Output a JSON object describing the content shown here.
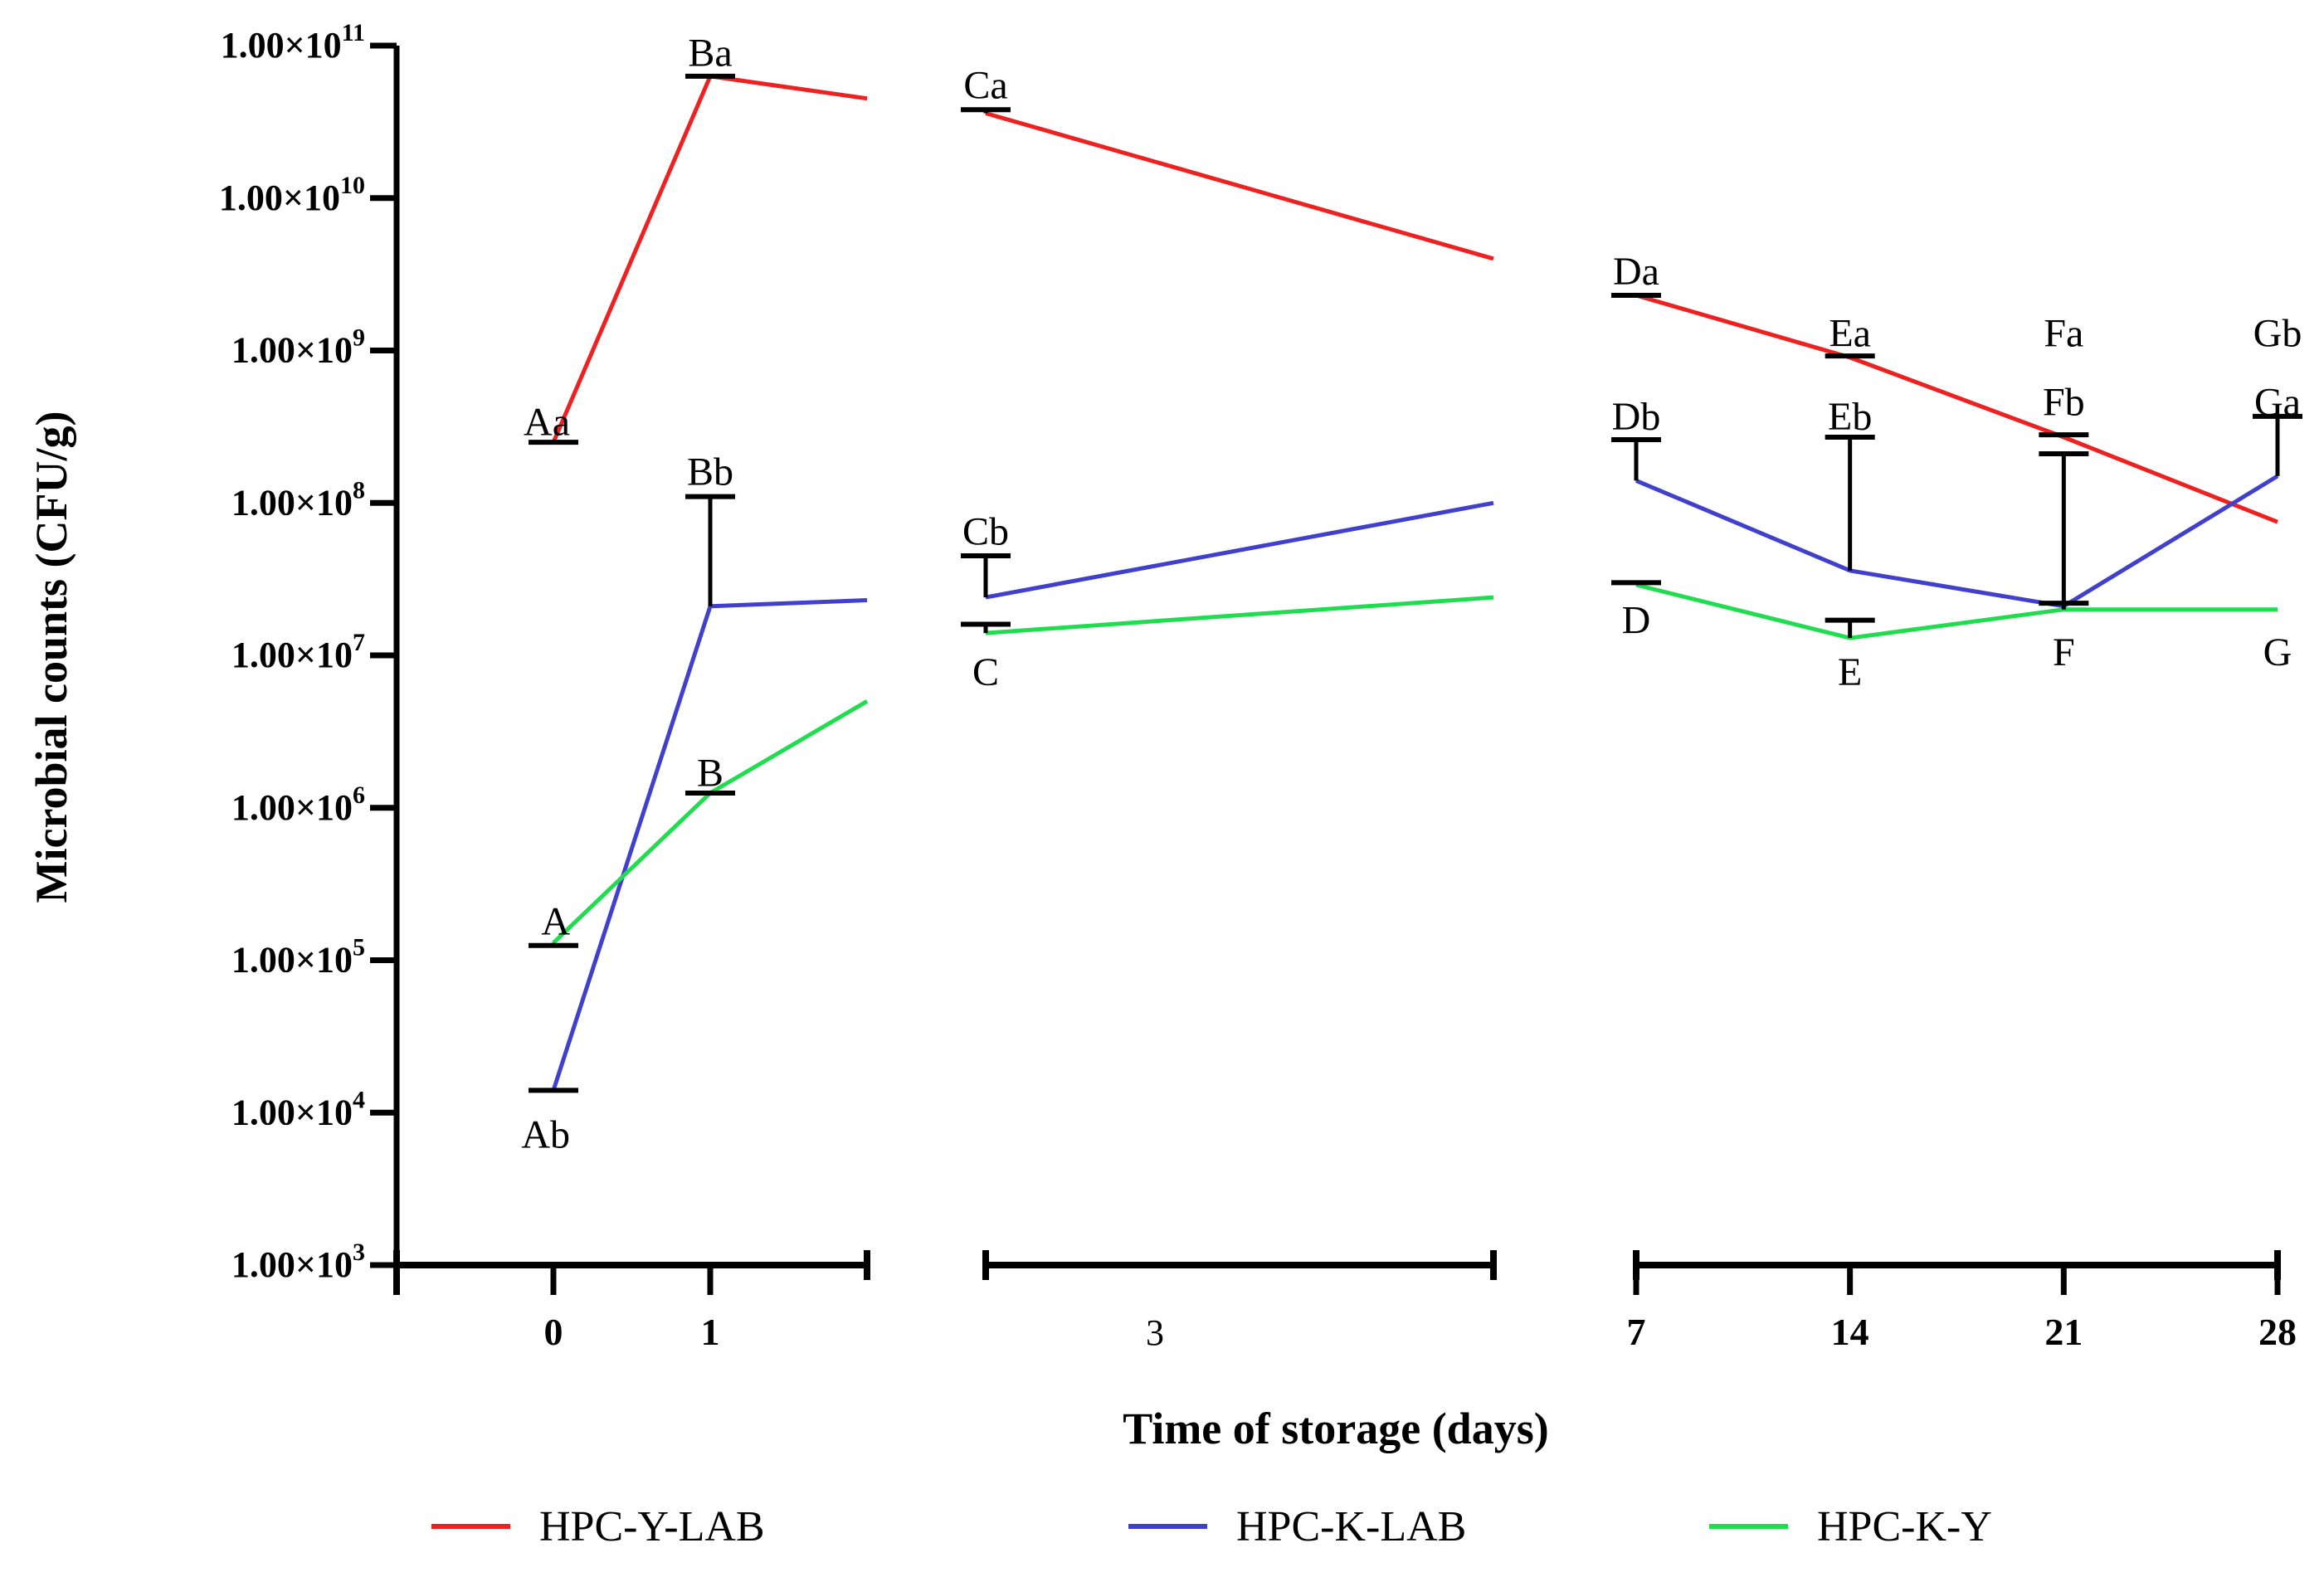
{
  "chart_data": {
    "type": "line",
    "xlabel": "Time of storage (days)",
    "ylabel": "Microbial counts (CFU/g)",
    "y_scale": "log",
    "ylim": [
      1000,
      100000000000
    ],
    "y_tick_labels": [
      {
        "value": 1000,
        "base": "1.00×10",
        "exp": "3"
      },
      {
        "value": 10000,
        "base": "1.00×10",
        "exp": "4"
      },
      {
        "value": 100000,
        "base": "1.00×10",
        "exp": "5"
      },
      {
        "value": 1000000,
        "base": "1.00×10",
        "exp": "6"
      },
      {
        "value": 10000000,
        "base": "1.00×10",
        "exp": "7"
      },
      {
        "value": 100000000,
        "base": "1.00×10",
        "exp": "8"
      },
      {
        "value": 1000000000,
        "base": "1.00×10",
        "exp": "9"
      },
      {
        "value": 10000000000,
        "base": "1.00×10",
        "exp": "10"
      },
      {
        "value": 100000000000,
        "base": "1.00×10",
        "exp": "11"
      }
    ],
    "x_segments": [
      {
        "start": -1,
        "end": 2,
        "tick_labels": [
          {
            "x": 0,
            "label": "0",
            "bold": true
          },
          {
            "x": 1,
            "label": "1",
            "bold": true
          }
        ]
      },
      {
        "start": 2,
        "end": 5,
        "tick_labels": [
          {
            "x": 3,
            "label": "3",
            "bold": false
          }
        ]
      },
      {
        "start": 7,
        "end": 28,
        "tick_labels": [
          {
            "x": 7,
            "label": "7",
            "bold": true
          },
          {
            "x": 14,
            "label": "14",
            "bold": true
          },
          {
            "x": 21,
            "label": "21",
            "bold": true
          },
          {
            "x": 28,
            "label": "28",
            "bold": true
          }
        ]
      }
    ],
    "grid": false,
    "legend_position": "bottom",
    "series": [
      {
        "name": "HPC-Y-LAB",
        "color": "#ee2020",
        "x": [
          0,
          1,
          2,
          2,
          5,
          7,
          14,
          21,
          28
        ],
        "y": [
          250000000,
          63000000000,
          45000000000,
          36000000000,
          4000000000,
          2300000000,
          900000000,
          270000000,
          75000000
        ],
        "error_upper": [
          250000000,
          63000000000,
          null,
          38000000000,
          null,
          2300000000,
          920000000,
          280000000,
          null
        ]
      },
      {
        "name": "HPC-K-LAB",
        "color": "#4040cc",
        "x": [
          0,
          1,
          2,
          2,
          5,
          7,
          14,
          21,
          28
        ],
        "y": [
          14000,
          21000000,
          23000000,
          24000000,
          100000000,
          140000000,
          36000000,
          21000000,
          150000000
        ],
        "error_upper": [
          14000,
          110000000,
          null,
          45000000,
          null,
          260000000,
          270000000,
          210000000,
          370000000
        ]
      },
      {
        "name": "HPC-K-Y",
        "color": "#20dd50",
        "x": [
          0,
          1,
          2,
          2,
          5,
          7,
          14,
          21,
          28
        ],
        "y": [
          130000,
          1250000,
          5000000,
          14000000,
          24000000,
          29000000,
          13000000,
          20000000,
          20000000
        ],
        "error_upper": [
          125000,
          1250000,
          null,
          16000000,
          null,
          30000000,
          17000000,
          22000000,
          null
        ]
      }
    ],
    "annotations": [
      {
        "text": "Aa",
        "x": 0,
        "y": 340000000,
        "anchor": "end"
      },
      {
        "text": "Ba",
        "x": 1,
        "y": 90000000000,
        "anchor": "middle"
      },
      {
        "text": "Ca",
        "x": 2,
        "y": 55000000000,
        "anchor": "middle",
        "seg": 1
      },
      {
        "text": "Da",
        "x": 7,
        "y": 3300000000,
        "anchor": "middle"
      },
      {
        "text": "Ea",
        "x": 14,
        "y": 1300000000,
        "anchor": "middle"
      },
      {
        "text": "Fa",
        "x": 21,
        "y": 1300000000,
        "anchor": "middle"
      },
      {
        "text": "Gb",
        "x": 28,
        "y": 1300000000,
        "anchor": "middle"
      },
      {
        "text": "Db",
        "x": 7,
        "y": 370000000,
        "anchor": "middle"
      },
      {
        "text": "Eb",
        "x": 14,
        "y": 370000000,
        "anchor": "middle"
      },
      {
        "text": "Fb",
        "x": 21,
        "y": 460000000,
        "anchor": "middle"
      },
      {
        "text": "Ga",
        "x": 28,
        "y": 460000000,
        "anchor": "middle"
      },
      {
        "text": "Bb",
        "x": 1,
        "y": 160000000,
        "anchor": "middle"
      },
      {
        "text": "Cb",
        "x": 2,
        "y": 65000000,
        "anchor": "middle",
        "seg": 1
      },
      {
        "text": "D",
        "x": 7,
        "y": 17000000,
        "anchor": "middle"
      },
      {
        "text": "E",
        "x": 14,
        "y": 7800000,
        "anchor": "middle"
      },
      {
        "text": "F",
        "x": 21,
        "y": 10500000,
        "anchor": "middle"
      },
      {
        "text": "G",
        "x": 28,
        "y": 10500000,
        "anchor": "middle"
      },
      {
        "text": "C",
        "x": 2,
        "y": 7800000,
        "anchor": "middle",
        "seg": 1
      },
      {
        "text": "B",
        "x": 1,
        "y": 1700000,
        "anchor": "middle"
      },
      {
        "text": "A",
        "x": 0,
        "y": 180000,
        "anchor": "end"
      },
      {
        "text": "Ab",
        "x": 0,
        "y": 7200,
        "anchor": "end"
      }
    ]
  }
}
